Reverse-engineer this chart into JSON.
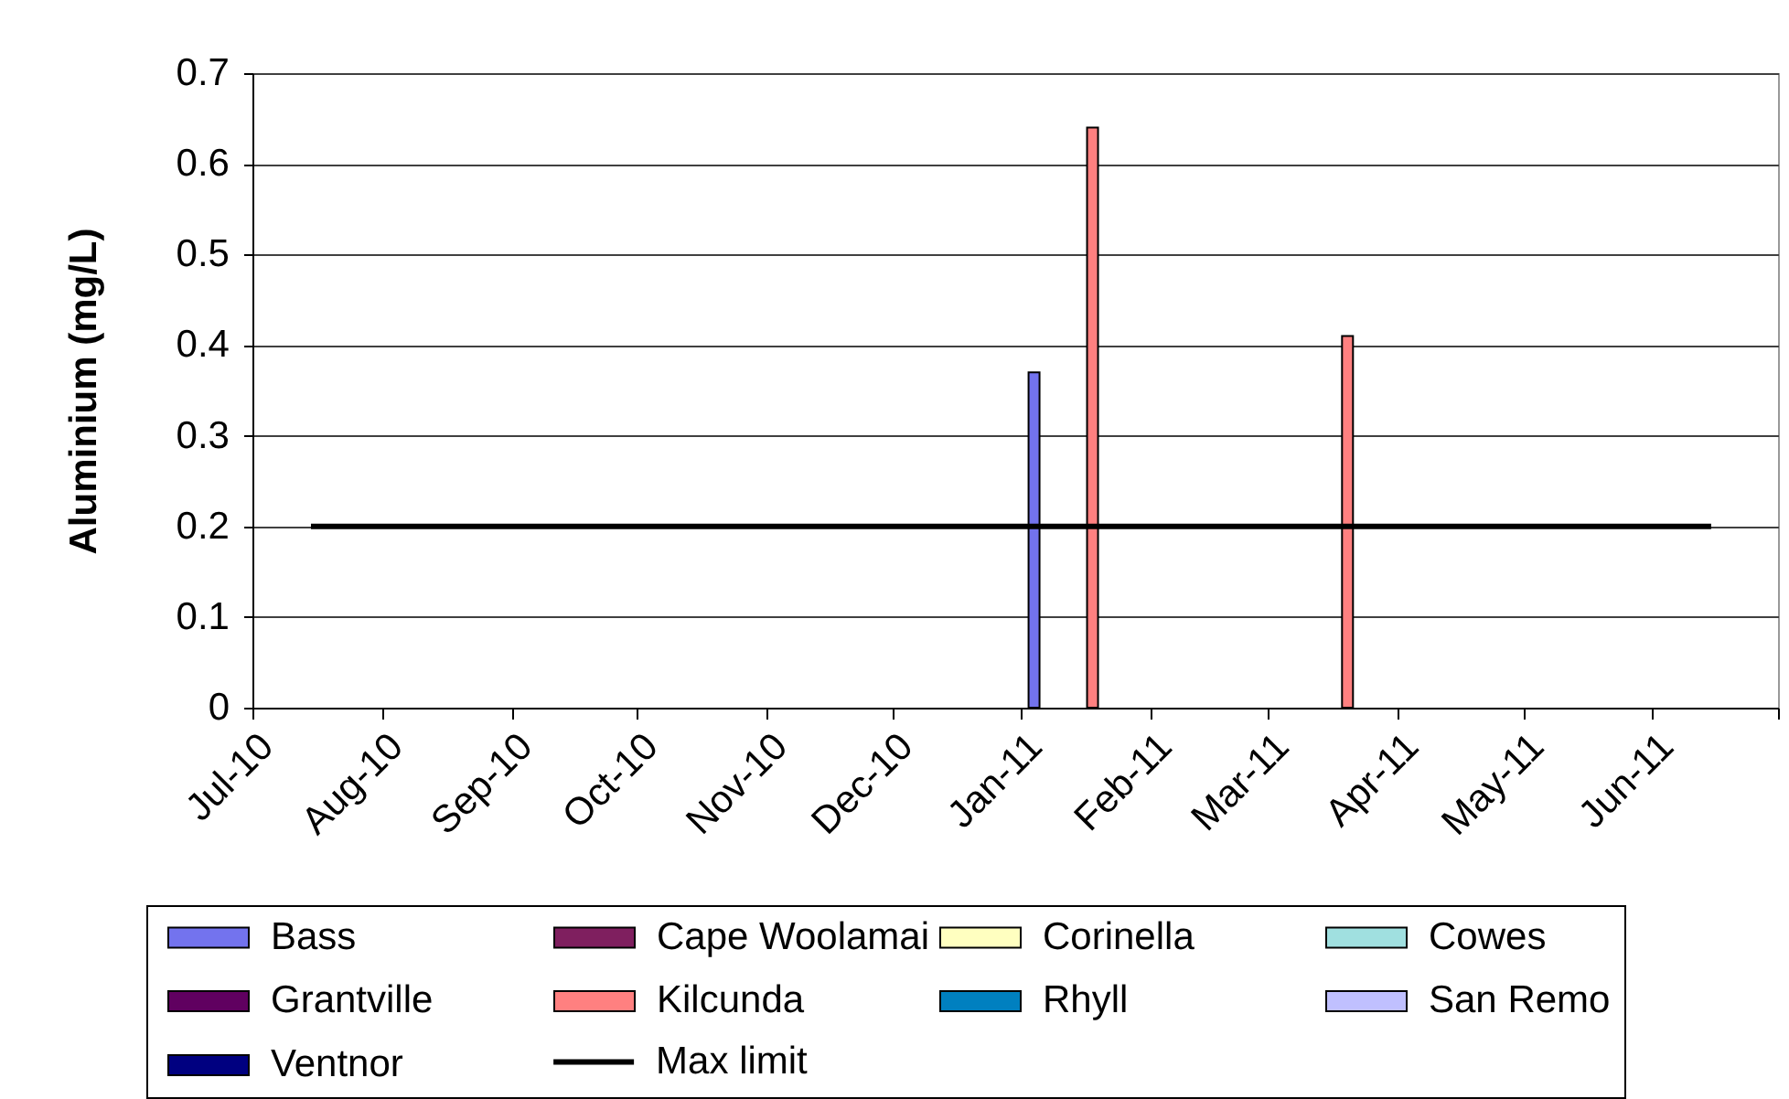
{
  "chart_data": {
    "type": "bar",
    "ylabel": "Aluminium (mg/L)",
    "series": [
      {
        "name": "Bass",
        "color": "#7373ee",
        "x": [
          "2011-01-04"
        ],
        "values": [
          0.37
        ]
      },
      {
        "name": "Cape Woolamai",
        "color": "#7f1f5f"
      },
      {
        "name": "Corinella",
        "color": "#ffffc0"
      },
      {
        "name": "Cowes",
        "color": "#a0e0e0"
      },
      {
        "name": "Grantville",
        "color": "#600060"
      },
      {
        "name": "Kilcunda",
        "color": "#ff8080",
        "x": [
          "2011-01-18",
          "2011-03-20"
        ],
        "values": [
          0.64,
          0.41
        ]
      },
      {
        "name": "Rhyll",
        "color": "#0080c0"
      },
      {
        "name": "San Remo",
        "color": "#c0c0ff"
      },
      {
        "name": "Ventnor",
        "color": "#000080"
      },
      {
        "name": "Max limit",
        "type": "line",
        "color": "#000000",
        "x": [
          "2010-07-15",
          "2011-06-15"
        ],
        "values": [
          0.2,
          0.2
        ]
      }
    ],
    "xlim": [
      "2010-07-01",
      "2011-07-01"
    ],
    "xticks": [
      {
        "value": "2010-07-01",
        "label": "Jul-10"
      },
      {
        "value": "2010-08-01",
        "label": "Aug-10"
      },
      {
        "value": "2010-09-01",
        "label": "Sep-10"
      },
      {
        "value": "2010-10-01",
        "label": "Oct-10"
      },
      {
        "value": "2010-11-01",
        "label": "Nov-10"
      },
      {
        "value": "2010-12-01",
        "label": "Dec-10"
      },
      {
        "value": "2011-01-01",
        "label": "Jan-11"
      },
      {
        "value": "2011-02-01",
        "label": "Feb-11"
      },
      {
        "value": "2011-03-01",
        "label": "Mar-11"
      },
      {
        "value": "2011-04-01",
        "label": "Apr-11"
      },
      {
        "value": "2011-05-01",
        "label": "May-11"
      },
      {
        "value": "2011-06-01",
        "label": "Jun-11"
      },
      {
        "value": "2011-07-01",
        "label": null
      }
    ],
    "ylim": [
      0,
      0.7
    ],
    "yticks": [
      0,
      0.1,
      0.2,
      0.3,
      0.4,
      0.5,
      0.6,
      0.7
    ],
    "grid": "y",
    "legend": "bottom"
  }
}
